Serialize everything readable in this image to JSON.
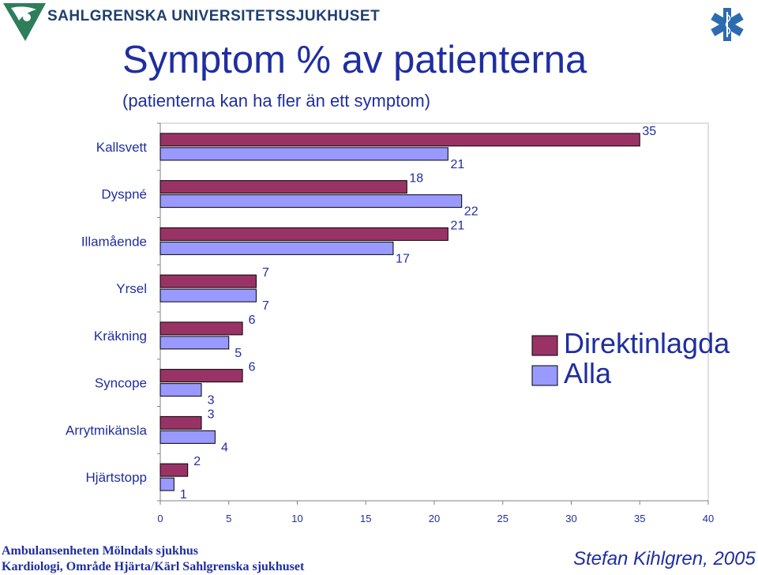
{
  "header": {
    "organization": "SAHLGRENSKA UNIVERSITETSSJUKHUSET",
    "logo_icon": "sahlgrenska-logo-icon",
    "star_icon": "star-of-life-icon"
  },
  "slide": {
    "title": "Symptom % av patienterna",
    "subtitle": "(patienterna kan ha fler än ett symptom)"
  },
  "footer": {
    "line1": "Ambulansenheten Mölndals sjukhus",
    "line2": "Kardiologi, Område Hjärta/Kärl Sahlgrenska sjukhuset",
    "author": "Stefan Kihlgren, 2005"
  },
  "colors": {
    "direktinlagda": "#993366",
    "alla": "#9999ff",
    "text_blue": "#1f2ea0"
  },
  "chart_data": {
    "type": "bar",
    "orientation": "horizontal",
    "categories": [
      "Kallsvett",
      "Dyspné",
      "Illamående",
      "Yrsel",
      "Kräkning",
      "Syncope",
      "Arrytmikänsla",
      "Hjärtstopp"
    ],
    "series": [
      {
        "name": "Direktinlagda",
        "values": [
          35,
          18,
          21,
          7,
          6,
          6,
          3,
          2
        ]
      },
      {
        "name": "Alla",
        "values": [
          21,
          22,
          17,
          7,
          5,
          3,
          4,
          1
        ]
      }
    ],
    "xlim": [
      0,
      40
    ],
    "xticks": [
      0,
      5,
      10,
      15,
      20,
      25,
      30,
      35,
      40
    ],
    "grid": false,
    "legend": "right"
  }
}
